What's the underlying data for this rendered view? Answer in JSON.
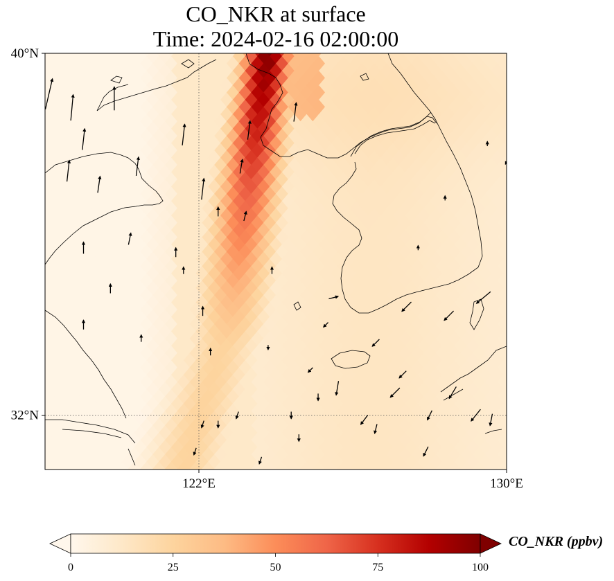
{
  "title": {
    "line1": "CO_NKR at surface",
    "line2": "Time: 2024-02-16 02:00:00"
  },
  "map": {
    "lon_range": [
      118.0,
      130.0
    ],
    "lat_range": [
      30.8,
      40.0
    ],
    "lat_ticks": [
      {
        "value": 40,
        "label": "40°N"
      },
      {
        "value": 32,
        "label": "32°N"
      }
    ],
    "lon_ticks": [
      {
        "value": 122,
        "label": "122°E"
      },
      {
        "value": 130,
        "label": "130°E"
      }
    ],
    "gridlines": {
      "lon": [
        122
      ],
      "lat": [
        32
      ],
      "style": "dotted"
    },
    "field": "CO_NKR",
    "plume": {
      "description_source": "high concentration band running from north-northeast to south-southwest",
      "axis": [
        [
          123.8,
          40.0
        ],
        [
          122.8,
          34.0
        ],
        [
          121.6,
          30.8
        ]
      ],
      "peak_ppbv": 100,
      "background_ppbv": 12
    },
    "wind_arrows": [
      [
        118.1,
        39.1,
        0.3,
        1.3
      ],
      [
        118.7,
        38.8,
        0.1,
        1.1
      ],
      [
        119.8,
        39.0,
        0.0,
        1.0
      ],
      [
        119.0,
        38.1,
        0.1,
        0.9
      ],
      [
        121.6,
        38.2,
        0.1,
        0.9
      ],
      [
        118.6,
        37.4,
        0.1,
        0.9
      ],
      [
        119.4,
        37.1,
        0.1,
        0.7
      ],
      [
        120.4,
        37.5,
        0.1,
        0.8
      ],
      [
        122.1,
        37.0,
        0.1,
        0.9
      ],
      [
        123.3,
        38.3,
        0.1,
        0.8
      ],
      [
        123.1,
        37.5,
        0.1,
        0.6
      ],
      [
        124.5,
        38.7,
        0.1,
        0.8
      ],
      [
        120.2,
        35.9,
        0.1,
        0.5
      ],
      [
        119.0,
        35.7,
        0.0,
        0.5
      ],
      [
        119.7,
        34.8,
        0.0,
        0.4
      ],
      [
        121.4,
        35.6,
        0.0,
        0.4
      ],
      [
        122.5,
        36.5,
        0.0,
        0.4
      ],
      [
        123.2,
        36.4,
        0.1,
        0.4
      ],
      [
        122.1,
        34.3,
        0.0,
        0.4
      ],
      [
        119.0,
        34.0,
        0.0,
        0.4
      ],
      [
        120.5,
        33.7,
        0.0,
        0.3
      ],
      [
        123.9,
        35.2,
        0.0,
        0.3
      ],
      [
        125.5,
        34.6,
        0.4,
        0.1
      ],
      [
        127.4,
        34.4,
        -0.4,
        -0.4
      ],
      [
        128.5,
        34.2,
        -0.4,
        -0.4
      ],
      [
        129.4,
        34.6,
        -0.6,
        -0.5
      ],
      [
        123.8,
        33.5,
        0.0,
        -0.2
      ],
      [
        124.9,
        33.0,
        -0.2,
        -0.2
      ],
      [
        125.3,
        34.0,
        -0.2,
        -0.2
      ],
      [
        126.6,
        33.6,
        -0.3,
        -0.3
      ],
      [
        127.3,
        32.9,
        -0.3,
        -0.3
      ],
      [
        128.6,
        32.5,
        -0.3,
        -0.5
      ],
      [
        129.2,
        32.0,
        -0.4,
        -0.5
      ],
      [
        128.0,
        32.0,
        -0.2,
        -0.4
      ],
      [
        127.1,
        32.5,
        -0.4,
        -0.4
      ],
      [
        126.3,
        31.9,
        -0.3,
        -0.4
      ],
      [
        125.6,
        32.6,
        -0.1,
        -0.6
      ],
      [
        125.1,
        32.4,
        0.0,
        -0.3
      ],
      [
        124.4,
        32.0,
        0.0,
        -0.3
      ],
      [
        123.0,
        32.0,
        -0.1,
        -0.3
      ],
      [
        122.1,
        31.8,
        -0.1,
        -0.3
      ],
      [
        122.5,
        31.8,
        0.0,
        -0.3
      ],
      [
        121.9,
        31.2,
        -0.1,
        -0.3
      ],
      [
        123.6,
        31.0,
        -0.1,
        -0.3
      ],
      [
        124.6,
        31.5,
        0.0,
        -0.3
      ],
      [
        126.6,
        31.7,
        -0.1,
        -0.4
      ],
      [
        127.9,
        31.2,
        -0.2,
        -0.4
      ],
      [
        129.6,
        31.9,
        -0.1,
        -0.5
      ],
      [
        121.6,
        35.2,
        0.0,
        0.3
      ],
      [
        122.3,
        33.4,
        0.0,
        0.3
      ],
      [
        127.7,
        35.7,
        0.0,
        0.2
      ],
      [
        128.4,
        36.8,
        0.0,
        0.2
      ],
      [
        130.0,
        37.6,
        -0.1,
        -0.2
      ],
      [
        129.5,
        38.0,
        0.0,
        0.2
      ]
    ]
  },
  "colorbar": {
    "label": "CO_NKR (ppbv)",
    "vmin": 0,
    "vmax": 100,
    "ticks": [
      {
        "value": 0,
        "label": "0"
      },
      {
        "value": 25,
        "label": "25"
      },
      {
        "value": 50,
        "label": "50"
      },
      {
        "value": 75,
        "label": "75"
      },
      {
        "value": 100,
        "label": "100"
      }
    ],
    "colormap": "OrRd",
    "extend": "both",
    "stops": [
      "#fff7ec",
      "#fee8c8",
      "#fdd49e",
      "#fdbb84",
      "#fc8d59",
      "#ef6548",
      "#d7301f",
      "#b30000",
      "#7f0000"
    ]
  }
}
